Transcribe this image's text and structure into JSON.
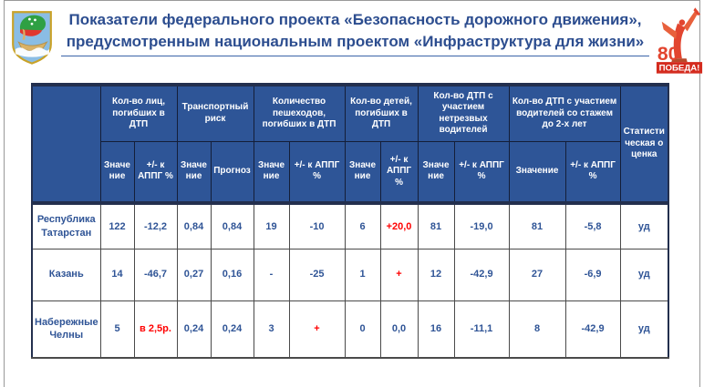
{
  "slide": {
    "title": "Показатели федерального проекта «Безопасность дорожного движения», предусмотренным национальным проектом «Инфраструктура для жизни»"
  },
  "logos": {
    "left": "city-coat-of-arms",
    "right_80": "80",
    "right_pobeda": "ПОБЕДА!"
  },
  "colors": {
    "header_bg": "#2e5597",
    "data_text": "#2f5496",
    "alert_text": "#ff0000",
    "title_text": "#2c4d8f"
  },
  "table": {
    "header": {
      "corner": "",
      "groups": [
        {
          "label": "Кол-во лиц, погибших в ДТП",
          "subs": [
            "Значение",
            "+/- к АППГ %"
          ]
        },
        {
          "label": "Транспортный риск",
          "subs": [
            "Значение",
            "Прогноз"
          ]
        },
        {
          "label": "Количество пешеходов, погибших в ДТП",
          "subs": [
            "Значение",
            "+/- к АППГ %"
          ]
        },
        {
          "label": "Кол-во детей, погибших в ДТП",
          "subs": [
            "Значение",
            "+/- к АППГ %"
          ]
        },
        {
          "label": "Кол-во ДТП с участием нетрезвых водителей",
          "subs": [
            "Значение",
            "+/- к АППГ %"
          ]
        },
        {
          "label": "Кол-во ДТП с участием водителей со стажем до 2-х лет",
          "subs": [
            "Значение",
            "+/- к АППГ %"
          ]
        }
      ],
      "stat_col": "Статистическая оценка"
    },
    "rows": [
      {
        "label": "Республика Татарстан",
        "cells": [
          {
            "v": "122"
          },
          {
            "v": "-12,2"
          },
          {
            "v": "0,84"
          },
          {
            "v": "0,84"
          },
          {
            "v": "19"
          },
          {
            "v": "-10"
          },
          {
            "v": "6"
          },
          {
            "v": "+20,0",
            "red": true
          },
          {
            "v": "81"
          },
          {
            "v": "-19,0"
          },
          {
            "v": "81"
          },
          {
            "v": "-5,8"
          },
          {
            "v": "уд"
          }
        ]
      },
      {
        "label": "Казань",
        "cells": [
          {
            "v": "14"
          },
          {
            "v": "-46,7"
          },
          {
            "v": "0,27"
          },
          {
            "v": "0,16"
          },
          {
            "v": "-"
          },
          {
            "v": "-25"
          },
          {
            "v": "1"
          },
          {
            "v": "+",
            "red": true
          },
          {
            "v": "12"
          },
          {
            "v": "-42,9"
          },
          {
            "v": "27"
          },
          {
            "v": "-6,9"
          },
          {
            "v": "уд"
          }
        ]
      },
      {
        "label": "Набережные Челны",
        "cells": [
          {
            "v": "5"
          },
          {
            "v": "в 2,5р.",
            "red": true
          },
          {
            "v": "0,24"
          },
          {
            "v": "0,24"
          },
          {
            "v": "3"
          },
          {
            "v": "+",
            "red": true
          },
          {
            "v": "0"
          },
          {
            "v": "0,0"
          },
          {
            "v": "16"
          },
          {
            "v": "-11,1"
          },
          {
            "v": "8"
          },
          {
            "v": "-42,9"
          },
          {
            "v": "уд"
          }
        ]
      }
    ]
  }
}
